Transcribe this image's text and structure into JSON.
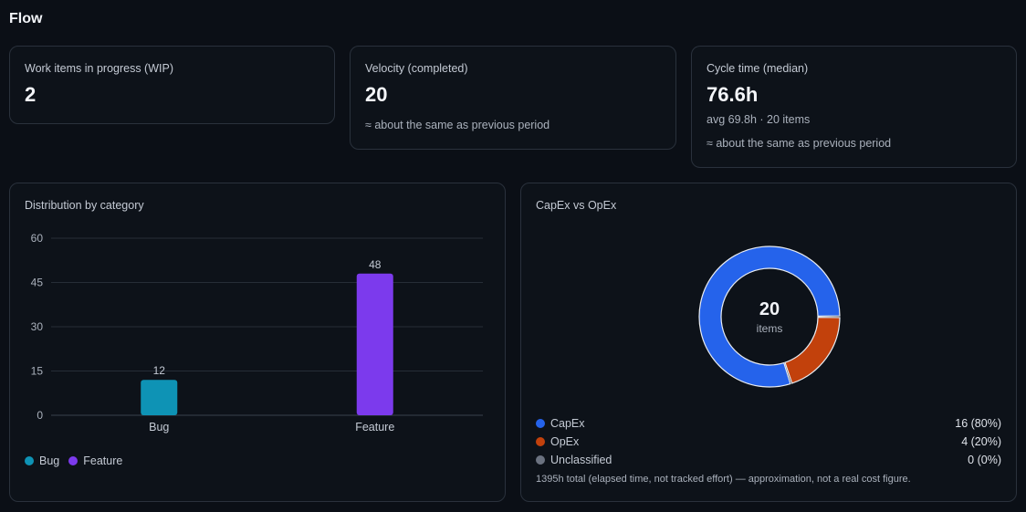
{
  "page": {
    "title": "Flow"
  },
  "kpis": {
    "wip": {
      "label": "Work items in progress (WIP)",
      "value": "2"
    },
    "velocity": {
      "label": "Velocity (completed)",
      "value": "20",
      "note": "≈ about the same as previous period"
    },
    "cycle": {
      "label": "Cycle time (median)",
      "value": "76.6h",
      "sub": "avg 69.8h · 20 items",
      "note": "≈ about the same as previous period"
    }
  },
  "distribution": {
    "title": "Distribution by category",
    "legend": [
      {
        "label": "Bug",
        "color": "#0e93b5"
      },
      {
        "label": "Feature",
        "color": "#7c3aed"
      }
    ]
  },
  "capex": {
    "title": "CapEx vs OpEx",
    "center_value": "20",
    "center_label": "items",
    "rows": [
      {
        "name": "CapEx",
        "value": "16 (80%)",
        "color": "#2563eb"
      },
      {
        "name": "OpEx",
        "value": "4 (20%)",
        "color": "#c2410c"
      },
      {
        "name": "Unclassified",
        "value": "0 (0%)",
        "color": "#6b7280"
      }
    ],
    "footnote": "1395h total (elapsed time, not tracked effort) — approximation, not a real cost figure."
  },
  "chart_data": [
    {
      "type": "bar",
      "title": "Distribution by category",
      "categories": [
        "Bug",
        "Feature"
      ],
      "values": [
        12,
        48
      ],
      "colors": [
        "#0e93b5",
        "#7c3aed"
      ],
      "yticks": [
        0,
        15,
        30,
        45,
        60
      ],
      "ylim": [
        0,
        60
      ],
      "grid": true,
      "legend": "bottom-left"
    },
    {
      "type": "pie",
      "title": "CapEx vs OpEx",
      "categories": [
        "CapEx",
        "OpEx",
        "Unclassified"
      ],
      "values": [
        16,
        4,
        0
      ],
      "colors": [
        "#2563eb",
        "#c2410c",
        "#6b7280"
      ],
      "legend": "bottom"
    }
  ]
}
